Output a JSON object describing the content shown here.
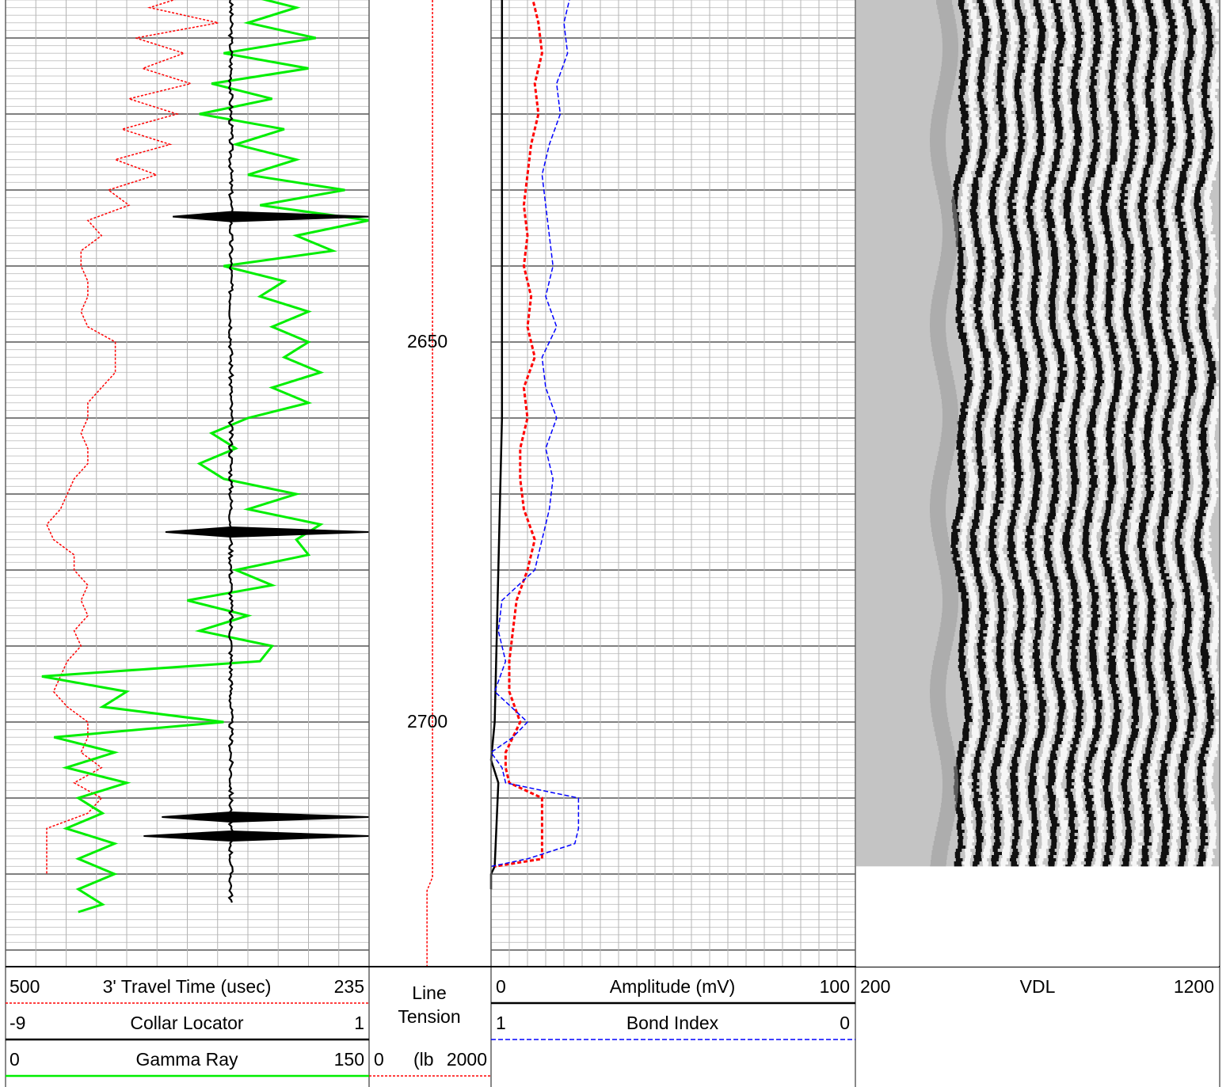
{
  "depth_labels": [
    "2650",
    "2700"
  ],
  "headers": {
    "track1": [
      {
        "left": "500",
        "name": "3' Travel Time (usec)",
        "right": "235",
        "color": "#ff0000",
        "style": "dotted"
      },
      {
        "left": "-9",
        "name": "Collar Locator",
        "right": "1",
        "color": "#000000",
        "style": "solid"
      },
      {
        "left": "0",
        "name": "Gamma Ray",
        "right": "150",
        "color": "#00ee00",
        "style": "solid"
      }
    ],
    "depth": {
      "title_line1": "Line",
      "title_line2": "Tension",
      "left": "0",
      "unit": "(lb",
      "right": "2000",
      "color": "#ff0000",
      "style": "dotted"
    },
    "track2": [
      {
        "left": "0",
        "name": "Amplitude (mV)",
        "right": "100",
        "color": "#000000",
        "style": "solid"
      },
      {
        "left": "1",
        "name": "Bond Index",
        "right": "0",
        "color": "#0000ff",
        "style": "dashed"
      }
    ],
    "track3": {
      "left": "200",
      "name": "VDL",
      "right": "1200"
    }
  },
  "chart_data": {
    "type": "line",
    "y_axis": "depth",
    "depth_range": [
      2597,
      2730
    ],
    "depth_ticks": [
      2650,
      2700
    ],
    "series": [
      {
        "name": "Gamma Ray",
        "range": [
          0,
          150
        ],
        "color": "#00ee00",
        "depth": [
          2597,
          2600,
          2602,
          2604,
          2606,
          2608,
          2610,
          2612,
          2614,
          2616,
          2618,
          2620,
          2622,
          2624,
          2626,
          2628,
          2630,
          2632,
          2634,
          2636,
          2638,
          2640,
          2642,
          2644,
          2646,
          2648,
          2650,
          2652,
          2654,
          2656,
          2658,
          2660,
          2662,
          2664,
          2666,
          2668,
          2670,
          2672,
          2674,
          2676,
          2678,
          2680,
          2682,
          2684,
          2686,
          2688,
          2690,
          2692,
          2694,
          2696,
          2698,
          2700,
          2702,
          2704,
          2706,
          2708,
          2710,
          2712,
          2714,
          2716,
          2718,
          2720,
          2722,
          2724,
          2725
        ],
        "values": [
          100,
          90,
          115,
          95,
          120,
          100,
          128,
          90,
          125,
          85,
          110,
          80,
          115,
          95,
          120,
          100,
          140,
          105,
          150,
          120,
          135,
          90,
          115,
          105,
          125,
          110,
          125,
          115,
          130,
          110,
          125,
          100,
          85,
          95,
          80,
          90,
          120,
          100,
          130,
          120,
          125,
          95,
          110,
          75,
          100,
          80,
          110,
          105,
          15,
          50,
          40,
          90,
          20,
          45,
          25,
          50,
          30,
          40,
          25,
          45,
          30,
          45,
          30,
          40,
          30
        ]
      },
      {
        "name": "3' Travel Time (usec)",
        "range": [
          500,
          235
        ],
        "color": "#ff0000",
        "depth": [
          2597,
          2600,
          2602,
          2604,
          2606,
          2608,
          2610,
          2612,
          2614,
          2616,
          2618,
          2620,
          2622,
          2624,
          2626,
          2628,
          2630,
          2632,
          2634,
          2636,
          2638,
          2640,
          2642,
          2644,
          2646,
          2648,
          2650,
          2652,
          2654,
          2656,
          2658,
          2660,
          2662,
          2664,
          2666,
          2668,
          2670,
          2672,
          2674,
          2676,
          2678,
          2680,
          2682,
          2684,
          2686,
          2688,
          2690,
          2692,
          2694,
          2696,
          2698,
          2700,
          2702,
          2704,
          2706,
          2708,
          2710,
          2712,
          2714,
          2716,
          2718,
          2720
        ],
        "values": [
          430,
          380,
          390,
          360,
          395,
          345,
          405,
          370,
          400,
          365,
          410,
          375,
          415,
          380,
          420,
          390,
          425,
          410,
          440,
          430,
          445,
          445,
          440,
          440,
          445,
          440,
          420,
          420,
          420,
          430,
          440,
          440,
          445,
          440,
          440,
          450,
          455,
          460,
          470,
          465,
          450,
          450,
          440,
          445,
          440,
          450,
          445,
          455,
          460,
          465,
          455,
          440,
          440,
          445,
          430,
          450,
          430,
          440,
          470,
          470,
          470,
          470
        ]
      },
      {
        "name": "Collar Locator",
        "range": [
          -9,
          1
        ],
        "color": "#000000",
        "baseline": -2.8,
        "spikes": [
          {
            "depth": 2633.5,
            "value": -4.4
          },
          {
            "depth": 2675,
            "value": -4.6
          },
          {
            "depth": 2712.5,
            "value": -4.7
          },
          {
            "depth": 2715,
            "value": -5.2
          }
        ]
      },
      {
        "name": "Line Tension",
        "range": [
          0,
          2000
        ],
        "color": "#ff0000",
        "values_lb": [
          1040,
          1040,
          950
        ]
      },
      {
        "name": "Amplitude (mV)",
        "range": [
          0,
          100
        ],
        "color": "#000000",
        "depth": [
          2597,
          2640,
          2660,
          2680,
          2700,
          2705,
          2708,
          2719,
          2720,
          2722
        ],
        "values": [
          3,
          3,
          3,
          2,
          1,
          0,
          2,
          1,
          0,
          0
        ]
      },
      {
        "name": "Amplitude (mV) - red",
        "range": [
          0,
          100
        ],
        "color": "#ff0000",
        "depth": [
          2597,
          2600,
          2604,
          2608,
          2612,
          2616,
          2620,
          2624,
          2628,
          2632,
          2636,
          2640,
          2644,
          2648,
          2652,
          2656,
          2660,
          2664,
          2668,
          2672,
          2676,
          2680,
          2684,
          2688,
          2692,
          2696,
          2700,
          2702,
          2704,
          2706,
          2708,
          2710,
          2714,
          2716,
          2718,
          2719
        ],
        "values": [
          12,
          11,
          11,
          13,
          14,
          12,
          13,
          11,
          10,
          9,
          10,
          9,
          11,
          10,
          12,
          9,
          10,
          8,
          8,
          9,
          12,
          10,
          7,
          6,
          5,
          5,
          8,
          6,
          4,
          4,
          5,
          14,
          14,
          14,
          14,
          1
        ]
      },
      {
        "name": "Bond Index",
        "range": [
          1,
          0
        ],
        "color": "#0000ff",
        "depth": [
          2597,
          2600,
          2604,
          2608,
          2612,
          2616,
          2620,
          2624,
          2628,
          2632,
          2636,
          2640,
          2644,
          2648,
          2652,
          2656,
          2660,
          2664,
          2668,
          2672,
          2676,
          2680,
          2684,
          2688,
          2692,
          2696,
          2700,
          2702,
          2704,
          2706,
          2708,
          2710,
          2714,
          2716,
          2718,
          2719
        ],
        "values": [
          0.79,
          0.79,
          0.78,
          0.8,
          0.79,
          0.82,
          0.81,
          0.84,
          0.86,
          0.85,
          0.84,
          0.83,
          0.85,
          0.82,
          0.86,
          0.85,
          0.82,
          0.85,
          0.83,
          0.84,
          0.86,
          0.88,
          0.97,
          0.98,
          0.96,
          0.99,
          0.9,
          0.94,
          1.0,
          0.97,
          0.96,
          0.76,
          0.76,
          0.77,
          0.9,
          1.0
        ]
      }
    ],
    "vdl": {
      "range": [
        200,
        1200
      ],
      "depth_bottom": 2719
    }
  }
}
